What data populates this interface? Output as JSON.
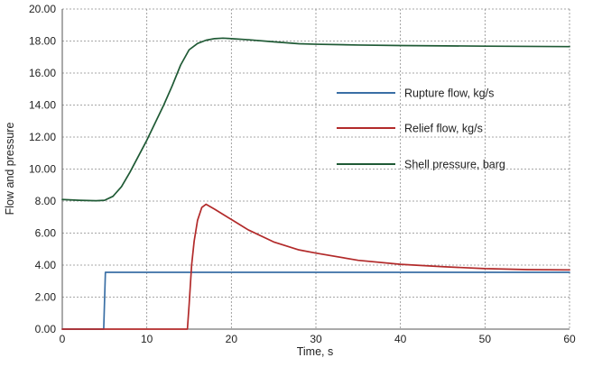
{
  "chart_data": {
    "type": "line",
    "title": "",
    "xlabel": "Time, s",
    "ylabel": "Flow and pressure",
    "xlim": [
      0,
      60
    ],
    "ylim": [
      0,
      20
    ],
    "x_ticks": [
      0,
      10,
      20,
      30,
      40,
      50,
      60
    ],
    "y_ticks": [
      0,
      2,
      4,
      6,
      8,
      10,
      12,
      14,
      16,
      18,
      20
    ],
    "x_tick_labels": [
      "0",
      "10",
      "20",
      "30",
      "40",
      "50",
      "60"
    ],
    "y_tick_labels": [
      "0.00",
      "2.00",
      "4.00",
      "6.00",
      "8.00",
      "10.00",
      "12.00",
      "14.00",
      "16.00",
      "18.00",
      "20.00"
    ],
    "grid": true,
    "legend_position": "right",
    "series": [
      {
        "name": "Rupture flow, kg/s",
        "color": "#3a6fa5",
        "points": [
          [
            0,
            0
          ],
          [
            4.9,
            0
          ],
          [
            5.1,
            3.55
          ],
          [
            60,
            3.55
          ]
        ]
      },
      {
        "name": "Relief flow, kg/s",
        "color": "#b22a2a",
        "points": [
          [
            0,
            0
          ],
          [
            14.8,
            0
          ],
          [
            15.0,
            1.5
          ],
          [
            15.3,
            4.0
          ],
          [
            15.6,
            5.5
          ],
          [
            16.0,
            6.8
          ],
          [
            16.5,
            7.6
          ],
          [
            17.0,
            7.8
          ],
          [
            18,
            7.5
          ],
          [
            20,
            6.85
          ],
          [
            22,
            6.2
          ],
          [
            25,
            5.45
          ],
          [
            28,
            4.95
          ],
          [
            30,
            4.75
          ],
          [
            35,
            4.3
          ],
          [
            40,
            4.05
          ],
          [
            45,
            3.9
          ],
          [
            50,
            3.78
          ],
          [
            55,
            3.72
          ],
          [
            60,
            3.7
          ]
        ]
      },
      {
        "name": "Shell pressure, barg",
        "color": "#1f5a35",
        "points": [
          [
            0,
            8.1
          ],
          [
            2,
            8.05
          ],
          [
            4,
            8.02
          ],
          [
            5,
            8.05
          ],
          [
            6,
            8.3
          ],
          [
            7,
            8.9
          ],
          [
            8,
            9.8
          ],
          [
            9,
            10.8
          ],
          [
            10,
            11.8
          ],
          [
            11,
            12.9
          ],
          [
            12,
            14.0
          ],
          [
            13,
            15.2
          ],
          [
            14,
            16.5
          ],
          [
            15,
            17.45
          ],
          [
            16,
            17.85
          ],
          [
            17,
            18.05
          ],
          [
            18,
            18.15
          ],
          [
            19,
            18.18
          ],
          [
            20,
            18.15
          ],
          [
            22,
            18.08
          ],
          [
            25,
            17.95
          ],
          [
            28,
            17.83
          ],
          [
            30,
            17.8
          ],
          [
            35,
            17.75
          ],
          [
            40,
            17.72
          ],
          [
            50,
            17.68
          ],
          [
            60,
            17.65
          ]
        ]
      }
    ]
  }
}
